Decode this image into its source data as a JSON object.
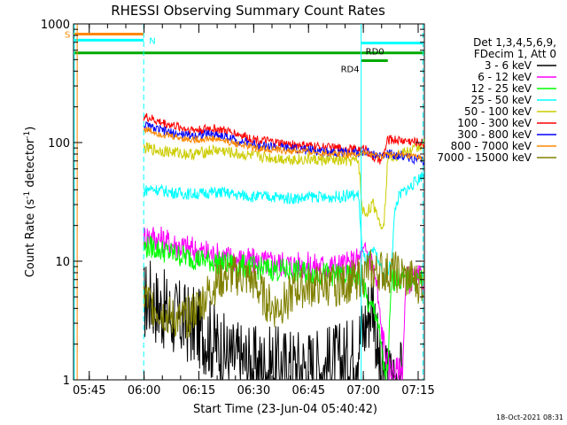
{
  "chart_data": {
    "type": "line",
    "title": "RHESSI Observing Summary Count Rates",
    "xlabel": "Start Time (23-Jun-04 05:40:42)",
    "ylabel_main": "Count Rate (s",
    "ylabel_sup1": "-1",
    "ylabel_mid": " detector",
    "ylabel_sup2": "-1",
    "ylabel_end": ")",
    "y_scale": "log",
    "ylim": [
      1,
      1000
    ],
    "xlim_minutes": [
      0,
      96
    ],
    "x_ticks": [
      {
        "label": "05:45",
        "value": 4.3
      },
      {
        "label": "06:00",
        "value": 19.3
      },
      {
        "label": "06:15",
        "value": 34.3
      },
      {
        "label": "06:30",
        "value": 49.3
      },
      {
        "label": "06:45",
        "value": 64.3
      },
      {
        "label": "07:00",
        "value": 79.3
      },
      {
        "label": "07:15",
        "value": 94.3
      }
    ],
    "y_ticks": [
      {
        "label": "1",
        "value": 1
      },
      {
        "label": "10",
        "value": 10
      },
      {
        "label": "100",
        "value": 100
      },
      {
        "label": "1000",
        "value": 1000
      }
    ],
    "legend_header": [
      "Det 1,3,4,5,6,9,",
      "FDecim 1, Att 0"
    ],
    "series": [
      {
        "name": "3 - 6 keV",
        "color": "#000000",
        "t": [
          19.2,
          21,
          23,
          25,
          27,
          29,
          31,
          33,
          35,
          37,
          39,
          41,
          43,
          45,
          47,
          49,
          51,
          53,
          55,
          57,
          59,
          61,
          63,
          65,
          67,
          69,
          71,
          73,
          75,
          77,
          79,
          80,
          81,
          82,
          83,
          84,
          85,
          86,
          87,
          88,
          89,
          90
        ],
        "v": [
          4.5,
          5,
          4.2,
          3.8,
          3.4,
          3.2,
          3.0,
          2.8,
          2.6,
          2.3,
          2.0,
          1.7,
          1.5,
          1.5,
          1.4,
          1.3,
          1.3,
          1.3,
          1.3,
          1.3,
          1.3,
          1.3,
          1.3,
          1.3,
          1.3,
          1.3,
          1.4,
          1.4,
          1.5,
          1.8,
          2.5,
          3,
          4,
          5,
          2,
          1,
          1,
          1,
          1,
          1,
          1,
          1
        ]
      },
      {
        "name": "6 - 12 keV",
        "color": "#ff00ff",
        "t": [
          19.2,
          21,
          23,
          25,
          27,
          29,
          31,
          33,
          35,
          37,
          39,
          41,
          43,
          45,
          47,
          49,
          51,
          53,
          55,
          57,
          59,
          61,
          63,
          65,
          67,
          69,
          71,
          73,
          75,
          77,
          79,
          80,
          81,
          82,
          83,
          84,
          85,
          86,
          87,
          88,
          89,
          90,
          91,
          92,
          93,
          94,
          95,
          96
        ],
        "v": [
          16,
          16.5,
          15.5,
          14.8,
          14,
          13.4,
          13,
          12.4,
          12,
          11.6,
          11.2,
          10.9,
          10.6,
          10.3,
          10.1,
          9.9,
          9.8,
          9.7,
          9.6,
          9.5,
          9.4,
          9.3,
          9.2,
          9.1,
          9.1,
          9.0,
          9.0,
          9.1,
          9.3,
          9.8,
          11,
          12,
          11,
          9,
          6,
          3,
          2,
          1.3,
          1.2,
          1.2,
          1.2,
          1.2,
          7,
          7,
          7,
          7,
          7,
          7
        ]
      },
      {
        "name": "12 - 25 keV",
        "color": "#00ff00",
        "t": [
          19.2,
          21,
          23,
          25,
          27,
          29,
          31,
          33,
          35,
          37,
          39,
          41,
          43,
          45,
          47,
          49,
          51,
          53,
          55,
          57,
          59,
          61,
          63,
          65,
          67,
          69,
          71,
          73,
          75,
          77,
          79,
          80,
          81,
          82,
          83,
          84,
          85,
          86,
          87,
          88,
          89,
          90,
          91,
          92,
          93,
          94,
          95,
          96
        ],
        "v": [
          13,
          13.3,
          12.6,
          12.1,
          11.6,
          11.2,
          10.9,
          10.6,
          10.3,
          10.1,
          9.8,
          9.6,
          9.4,
          9.2,
          9.0,
          8.9,
          8.7,
          8.6,
          8.5,
          8.4,
          8.3,
          8.2,
          8.1,
          8.0,
          7.9,
          7.8,
          7.7,
          7.6,
          7.4,
          7.2,
          7.0,
          5,
          4,
          4,
          3.5,
          2,
          1.2,
          1.1,
          7,
          7,
          7,
          7,
          7,
          7,
          7,
          7,
          7,
          7
        ]
      },
      {
        "name": "25 - 50 keV",
        "color": "#00ffff",
        "t": [
          19.2,
          21,
          23,
          25,
          27,
          29,
          31,
          33,
          35,
          37,
          39,
          41,
          43,
          45,
          47,
          49,
          51,
          53,
          55,
          57,
          59,
          61,
          63,
          65,
          67,
          69,
          71,
          73,
          75,
          77,
          78,
          79,
          80,
          81,
          82,
          83,
          84,
          85,
          86,
          87,
          88,
          89,
          90,
          91,
          92,
          93,
          94,
          95,
          96
        ],
        "v": [
          39,
          41,
          40,
          39,
          38,
          37.5,
          37,
          37,
          37,
          38,
          38,
          38,
          37,
          36,
          36,
          35,
          35,
          35,
          35,
          34,
          34,
          34,
          34,
          35,
          35,
          34,
          35,
          35,
          36,
          36,
          36,
          12,
          10,
          11,
          12,
          11,
          9,
          7,
          8,
          10,
          28,
          35,
          38,
          40,
          42,
          45,
          48,
          52,
          55
        ]
      },
      {
        "name": "50 - 100 keV",
        "color": "#cccc00",
        "t": [
          19.2,
          21,
          23,
          25,
          27,
          29,
          31,
          33,
          35,
          37,
          39,
          41,
          43,
          45,
          47,
          49,
          51,
          53,
          55,
          57,
          59,
          61,
          63,
          65,
          67,
          69,
          71,
          73,
          75,
          77,
          78,
          79,
          80,
          81,
          82,
          83,
          84,
          85,
          86,
          87,
          88,
          89,
          90,
          91,
          92,
          93,
          94,
          95,
          96
        ],
        "v": [
          90,
          88,
          86,
          85,
          83,
          82,
          80,
          80,
          82,
          85,
          86,
          85,
          82,
          80,
          78,
          77,
          76,
          75,
          74,
          73,
          73,
          72,
          72,
          72,
          71,
          71,
          71,
          70,
          70,
          70,
          70,
          27,
          25,
          28,
          30,
          26,
          20,
          22,
          75,
          78,
          78,
          79,
          80,
          82,
          85,
          88,
          90,
          95,
          100
        ]
      },
      {
        "name": "100 - 300 keV",
        "color": "#ff0000",
        "t": [
          19.2,
          21,
          23,
          25,
          27,
          29,
          31,
          33,
          35,
          37,
          39,
          41,
          43,
          45,
          47,
          49,
          51,
          53,
          55,
          57,
          59,
          61,
          63,
          65,
          67,
          69,
          71,
          73,
          75,
          77,
          79,
          80,
          81,
          82,
          83,
          84,
          85,
          86,
          87,
          88,
          89,
          90,
          91,
          92,
          93,
          94,
          95,
          96
        ],
        "v": [
          165,
          160,
          150,
          145,
          140,
          135,
          130,
          128,
          128,
          132,
          130,
          126,
          122,
          118,
          112,
          108,
          105,
          102,
          100,
          98,
          96,
          95,
          94,
          93,
          92,
          91,
          90,
          89,
          88,
          88,
          88,
          90,
          80,
          75,
          72,
          70,
          82,
          105,
          106,
          106,
          105,
          104,
          104,
          103,
          102,
          101,
          100,
          99
        ]
      },
      {
        "name": "300 - 800 keV",
        "color": "#0000ff",
        "t": [
          19.2,
          21,
          23,
          25,
          27,
          29,
          31,
          33,
          35,
          37,
          39,
          41,
          43,
          45,
          47,
          49,
          51,
          53,
          55,
          57,
          59,
          61,
          63,
          65,
          67,
          69,
          71,
          73,
          75,
          77,
          79,
          80,
          81,
          82,
          83,
          84,
          85,
          86,
          87,
          88,
          89,
          90,
          91,
          92,
          93,
          94,
          95,
          96
        ],
        "v": [
          140,
          135,
          128,
          124,
          120,
          117,
          115,
          115,
          116,
          118,
          117,
          113,
          108,
          104,
          100,
          97,
          95,
          93,
          92,
          90,
          89,
          88,
          87,
          86,
          85,
          84,
          84,
          83,
          83,
          82,
          82,
          84,
          82,
          80,
          78,
          76,
          78,
          80,
          80,
          79,
          78,
          77,
          76,
          75,
          73,
          72,
          70,
          68
        ]
      },
      {
        "name": "800 - 7000 keV",
        "color": "#ff8800",
        "t": [
          19.2,
          21,
          23,
          25,
          27,
          29,
          31,
          33,
          35,
          37,
          39,
          41,
          43,
          45,
          47,
          49,
          51,
          53,
          55,
          57,
          59,
          61,
          63,
          65,
          67,
          69,
          71,
          73,
          75,
          77,
          79,
          80,
          81,
          82,
          83,
          84,
          85,
          86,
          87,
          88,
          89,
          90,
          91,
          92,
          93,
          94,
          95,
          96
        ],
        "v": [
          130,
          126,
          120,
          116,
          113,
          110,
          107,
          106,
          106,
          108,
          107,
          104,
          100,
          97,
          94,
          91,
          89,
          88,
          87,
          86,
          85,
          84,
          84,
          83,
          82,
          82,
          81,
          81,
          80,
          80,
          80,
          82,
          80,
          78,
          76,
          76,
          78,
          79,
          79,
          79,
          78,
          78,
          77,
          76,
          76,
          75,
          75,
          74
        ]
      },
      {
        "name": "7000 - 15000 keV",
        "color": "#808000",
        "t": [
          19.2,
          21,
          23,
          25,
          27,
          29,
          31,
          33,
          35,
          37,
          39,
          41,
          43,
          45,
          47,
          49,
          51,
          53,
          55,
          57,
          59,
          61,
          63,
          65,
          67,
          69,
          71,
          73,
          75,
          77,
          79,
          80,
          81,
          82,
          83,
          84,
          85,
          86,
          87,
          88,
          89,
          90,
          91,
          92,
          93,
          94,
          95,
          96
        ],
        "v": [
          5.2,
          4.4,
          4.0,
          3.6,
          3.3,
          3.2,
          3.3,
          3.8,
          4.5,
          5.5,
          6.5,
          7.2,
          7.5,
          7.5,
          7.3,
          6.8,
          5.5,
          4.5,
          4.0,
          4.3,
          5.0,
          5.8,
          6.0,
          6.0,
          6.2,
          6.2,
          6.2,
          6.3,
          6.5,
          7.0,
          7.5,
          8,
          8.5,
          8,
          8,
          8.5,
          8,
          8,
          8,
          8,
          7.8,
          7.5,
          7,
          7,
          7,
          6.5,
          6.5,
          6.5
        ]
      }
    ],
    "segments": [
      {
        "label": "S",
        "color": "#ff8800",
        "t0": 0,
        "t1": 19.2,
        "level": 820
      },
      {
        "label": "N",
        "color": "#00ffff",
        "t0": 0,
        "t1": 19.2,
        "level": 730
      },
      {
        "label": "",
        "color": "#00aa00",
        "t0": 0,
        "t1": 96,
        "level": 570
      },
      {
        "label": "RD0",
        "color": "#00ffff",
        "t0": 78.7,
        "t1": 95.6,
        "level": 690
      },
      {
        "label": "RD4",
        "color": "#00aa00",
        "t0": 78.7,
        "t1": 86.0,
        "level": 490
      }
    ],
    "vlines": [
      {
        "t": 0.2,
        "color": "#00ffff",
        "dash": false
      },
      {
        "t": 1.0,
        "color": "#ff8800",
        "dash": false
      },
      {
        "t": 19.2,
        "color": "#00ffff",
        "dash": true
      },
      {
        "t": 78.7,
        "color": "#00ffff",
        "dash": false
      },
      {
        "t": 95.6,
        "color": "#00ffff",
        "dash": true
      }
    ]
  },
  "footer_timestamp": "18-Oct-2021 08:31"
}
